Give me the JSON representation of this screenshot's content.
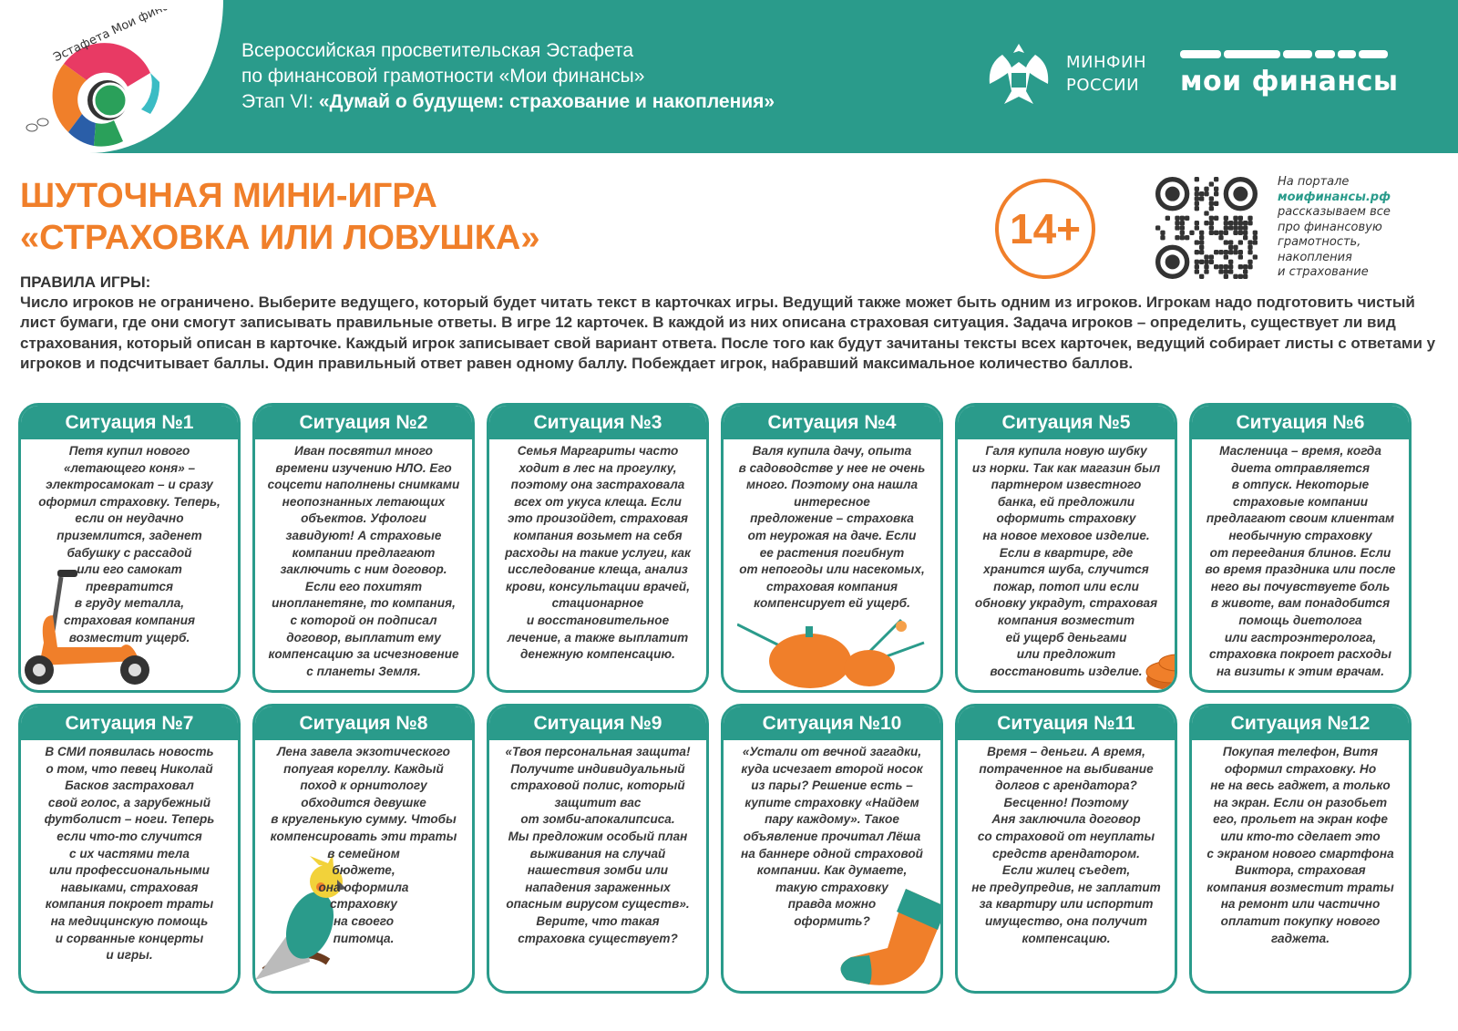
{
  "header": {
    "logo_text": "Эстафета Мои финансы",
    "line1": "Всероссийская просветительская Эстафета",
    "line2": "по финансовой грамотности «Мои финансы»",
    "line3_prefix": "Этап VI: ",
    "line3_bold": "«Думай о будущем: страхование и накопления»",
    "minfin_line1": "МИНФИН",
    "minfin_line2": "РОССИИ",
    "brand": "мои финансы"
  },
  "title": {
    "line1": "ШУТОЧНАЯ МИНИ-ИГРА",
    "line2": "«СТРАХОВКА ИЛИ ЛОВУШКА»"
  },
  "age_badge": "14+",
  "portal": {
    "line1": "На портале",
    "link": "моифинансы.рф",
    "rest": "рассказываем все\nпро финансовую\nграмотность,\nнакопления\nи страхование"
  },
  "rules": {
    "heading": "ПРАВИЛА ИГРЫ:",
    "text": "Число игроков не ограничено. Выберите ведущего, который будет читать текст в карточках игры. Ведущий также может быть одним из игроков. Игрокам надо подготовить чистый лист бумаги, где они смогут записывать правильные ответы. В игре 12 карточек. В каждой из них описана страховая ситуация. Задача игроков – определить, существует ли вид страхования, который описан в карточке. Каждый игрок записывает свой вариант ответа. После того как будут зачитаны тексты всех карточек, ведущий собирает листы с ответами у игроков и подсчитывает баллы. Один правильный ответ равен одному баллу. Побеждает игрок, набравший максимальное количество баллов."
  },
  "colors": {
    "teal": "#2a9b8b",
    "orange": "#f07f2a"
  },
  "cards": [
    {
      "title": "Ситуация №1",
      "text": "Петя купил нового\n«летающего коня» –\nэлектросамокат – и сразу\nоформил страховку. Теперь,\nесли он неудачно\nприземлится, заденет\nбабушку с рассадой\n               или его самокат\n               превратится\n              в груду металла,\n            страховая компания\n           возместит ущерб."
    },
    {
      "title": "Ситуация №2",
      "text": "Иван посвятил много\nвремени изучению НЛО. Его\nсоцсети наполнены снимками\nнеопознанных летающих\nобъектов. Уфологи\nзавидуют! А страховые\nкомпании предлагают\nзаключить с ним договор.\nЕсли его похитят\nинопланетяне, то компания,\nс которой он подписал\nдоговор, выплатит ему\nкомпенсацию за исчезновение\nс планеты Земля."
    },
    {
      "title": "Ситуация №3",
      "text": "Семья Маргариты часто\nходит в лес на прогулку,\nпоэтому она застраховала\nвсех от укуса клеща. Если\nэто произойдет, страховая\nкомпания возьмет на себя\nрасходы на такие услуги, как\nисследование клеща, анализ\nкрови, консультации врачей,\nстационарное\nи восстановительное\nлечение, а также выплатит\nденежную компенсацию."
    },
    {
      "title": "Ситуация №4",
      "text": "Валя купила дачу, опыта\nв садоводстве у нее не очень\nмного. Поэтому она нашла\nинтересное\nпредложение – страховка\nот неурожая на даче. Если\nее растения погибнут\nот непогоды или насекомых,\nстраховая компания\nкомпенсирует ей ущерб."
    },
    {
      "title": "Ситуация №5",
      "text": "Галя купила новую шубку\nиз норки. Так как магазин был\nпартнером известного\nбанка, ей предложили\nоформить страховку\nна новое меховое изделие.\nЕсли в квартире, где\nхранится шуба, случится\nпожар, потоп или если\nобновку украдут, страховая\nкомпания возместит\nей ущерб деньгами\nили предложит\nвосстановить изделие."
    },
    {
      "title": "Ситуация №6",
      "text": "Масленица – время, когда\nдиета отправляется\nв отпуск. Некоторые\nстраховые компании\nпредлагают своим клиентам\nнеобычную страховку\nот переедания блинов. Если\nво время праздника или после\nнего вы почувствуете боль\nв животе, вам понадобится\nпомощь диетолога\nили гастроэнтеролога,\nстраховка покроет расходы\nна визиты к этим врачам."
    },
    {
      "title": "Ситуация №7",
      "text": "В СМИ появилась новость\nо том, что певец Николай\nБасков застраховал\nсвой голос, а зарубежный\nфутболист – ноги. Теперь\nесли что-то случится\nс их частями тела\nили профессиональными\nнавыками, страховая\nкомпания покроет траты\nна медицинскую помощь\nи сорванные концерты\nи игры."
    },
    {
      "title": "Ситуация №8",
      "text": "Лена завела экзотического\nпопугая кореллу. Каждый\nпоход к орнитологу\nобходится девушке\nв кругленькую сумму. Чтобы\nкомпенсировать эти траты\n                        в семейном\n                        бюджете,\n                        она оформила\n                        страховку\n                        на своего\n                        питомца."
    },
    {
      "title": "Ситуация №9",
      "text": "«Твоя персональная защита!\nПолучите индивидуальный\nстраховой полис, который\nзащитит вас\nот зомби-апокалипсиса.\nМы предложим особый план\nвыживания на случай\nнашествия зомби или\nнападения зараженных\nопасным вирусом существ».\nВерите, что такая\nстраховка существует?"
    },
    {
      "title": "Ситуация №10",
      "text": "«Устали от вечной загадки,\nкуда исчезает второй носок\nиз пары? Решение есть –\nкупите страховку «Найдем\nпару каждому». Такое\nобъявление прочитал Лёша\nна баннере одной страховой\nкомпании. Как думаете,\nтакую страховку\nправда можно\nоформить?"
    },
    {
      "title": "Ситуация №11",
      "text": "Время – деньги. А время,\nпотраченное на выбивание\nдолгов с арендатора?\nБесценно! Поэтому\nАня заключила договор\nсо страховой от неуплаты\nсредств арендатором.\nЕсли жилец съедет,\nне предупредив, не заплатит\nза квартиру или испортит\nимущество, она получит\nкомпенсацию."
    },
    {
      "title": "Ситуация №12",
      "text": "Покупая телефон, Витя\nоформил страховку. Но\nне на весь гаджет, а только\nна экран. Если он разобьет\nего, прольет на экран кофе\nили кто-то сделает это\nс экраном нового смартфона\nВиктора, страховая\nкомпания возместит траты\nна ремонт или частично\nоплатит покупку нового\nгаджета."
    }
  ]
}
